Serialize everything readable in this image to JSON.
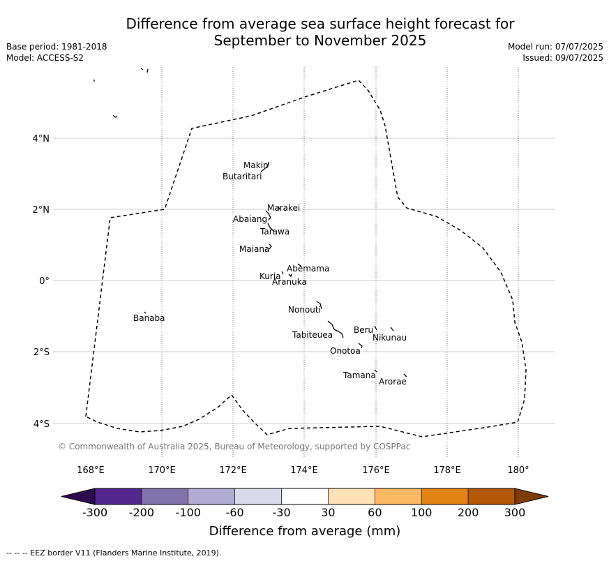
{
  "title": {
    "line1": "Difference from average sea surface height forecast for",
    "line2": "September to November 2025"
  },
  "meta": {
    "base_period": "Base period: 1981-2018",
    "model": "Model: ACCESS-S2",
    "model_run": "Model run: 07/07/2025",
    "issued": "Issued: 09/07/2025"
  },
  "map": {
    "lon_labels": [
      "168°E",
      "170°E",
      "172°E",
      "174°E",
      "176°E",
      "178°E",
      "180°"
    ],
    "lat_labels": [
      "4°N",
      "2°N",
      "0°",
      "2°S",
      "4°S"
    ],
    "places": [
      "Makin",
      "Butaritari",
      "Marakei",
      "Abaiang",
      "Tarawa",
      "Maiana",
      "Abemama",
      "Kuria",
      "Aranuka",
      "Nonouti",
      "Banaba",
      "Beru",
      "Nikunau",
      "Tabiteuea",
      "Onotoa",
      "Tamana",
      "Arorae"
    ],
    "copyright": "© Commonwealth of Australia 2025, Bureau of Meteorology, supported by COSPPac"
  },
  "colorbar": {
    "label": "Difference from average (mm)",
    "ticks": [
      "-300",
      "-200",
      "-100",
      "-60",
      "-30",
      "30",
      "60",
      "100",
      "200",
      "300"
    ],
    "colors": {
      "under": "#2d0a4e",
      "bins": [
        "#54278f",
        "#8073ac",
        "#b2abd2",
        "#d8daeb",
        "#ffffff",
        "#fee0b6",
        "#fdb863",
        "#e08214",
        "#b35806"
      ],
      "over": "#7f3b08"
    }
  },
  "footer": "--  --  -- EEZ border V11 (Flanders Marine Institute, 2019)."
}
